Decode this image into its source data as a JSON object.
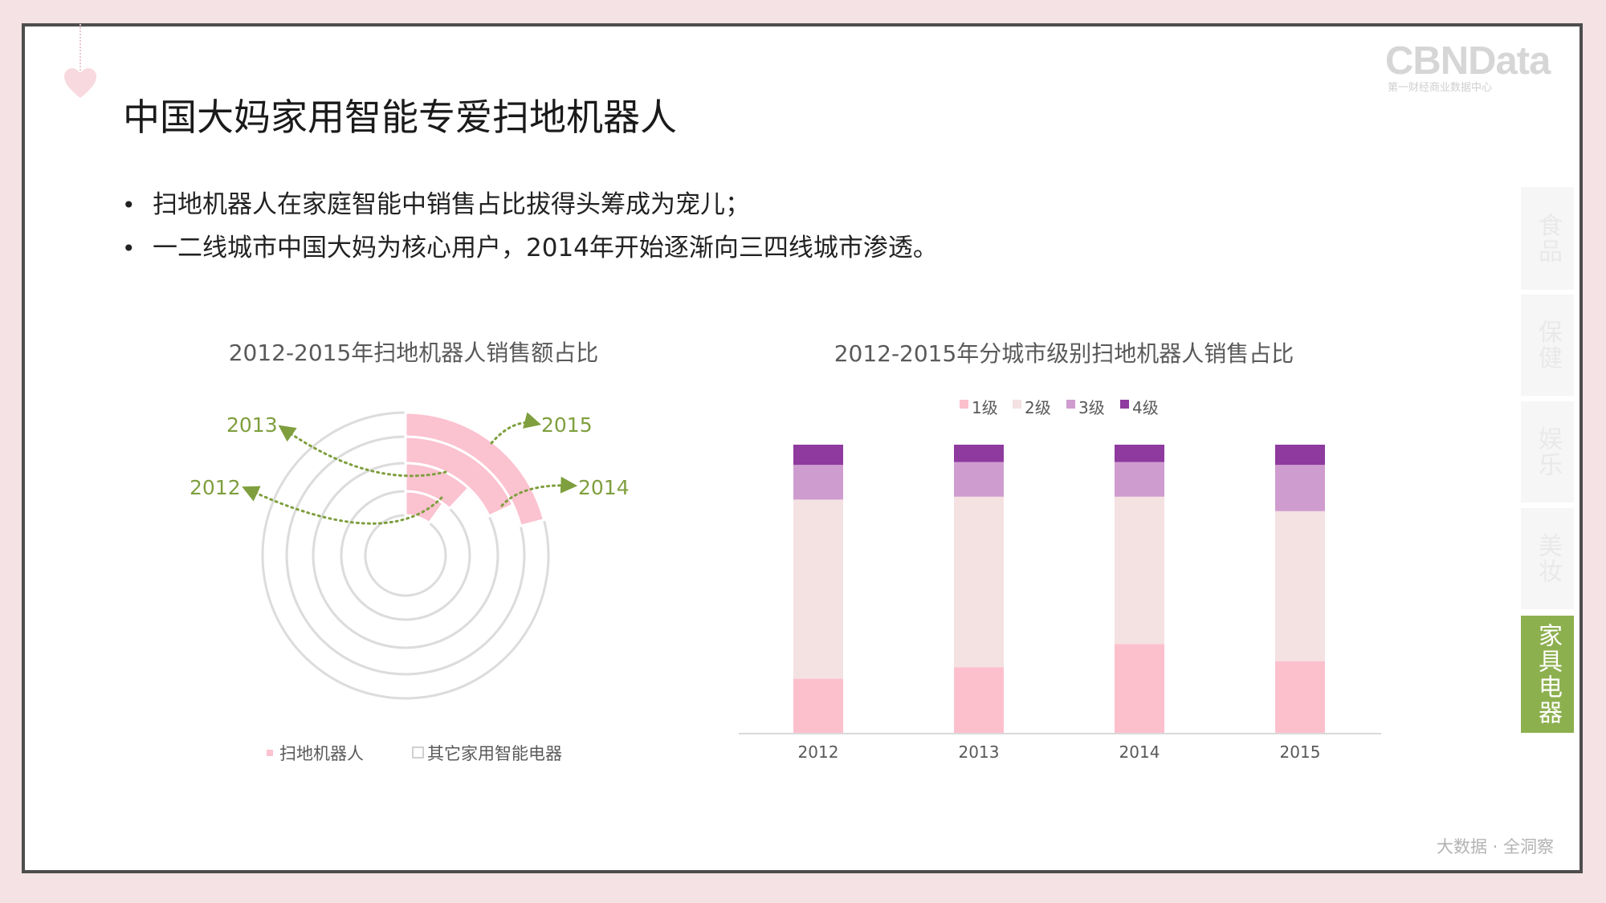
{
  "slide": {
    "title": "中国大妈家用智能专爱扫地机器人",
    "bullets": [
      "扫地机器人在家庭智能中销售占比拔得头筹成为宠儿；",
      "一二线城市中国大妈为核心用户，2014年开始逐渐向三四线城市渗透。"
    ],
    "logo": {
      "main": "CBNData",
      "sub": "第一财经商业数据中心"
    },
    "footer": "大数据 · 全洞察",
    "side_tabs": [
      {
        "label": "食品",
        "active": false
      },
      {
        "label": "保健",
        "active": false
      },
      {
        "label": "娱乐",
        "active": false
      },
      {
        "label": "美妆",
        "active": false
      },
      {
        "label": "家具电器",
        "active": true
      }
    ]
  },
  "colors": {
    "accent_green": "#8db04f",
    "annotation_green": "#7f9f3e",
    "robot_pink": "#fbc2d0",
    "other_ring": "#dcdcdc",
    "tier1": "#fcc0cd",
    "tier2": "#f4e1e1",
    "tier3": "#cf9ccf",
    "tier4": "#8e3a9e"
  },
  "chart_data": [
    {
      "type": "pie",
      "subtype": "radial-ring",
      "title": "2012-2015年扫地机器人销售额占比",
      "series": [
        {
          "name": "扫地机器人",
          "values": [
            10,
            12,
            18,
            21
          ]
        },
        {
          "name": "其它家用智能电器",
          "values": [
            90,
            88,
            82,
            79
          ]
        }
      ],
      "rings": [
        "2012",
        "2013",
        "2014",
        "2015"
      ],
      "annotations": [
        "2013",
        "2015",
        "2012",
        "2014"
      ],
      "legend": [
        "扫地机器人",
        "其它家用智能电器"
      ],
      "legend_position": "bottom"
    },
    {
      "type": "bar",
      "stacked": true,
      "title": "2012-2015年分城市级别扫地机器人销售占比",
      "categories": [
        "2012",
        "2013",
        "2014",
        "2015"
      ],
      "series": [
        {
          "name": "1级",
          "values": [
            19,
            23,
            31,
            25
          ]
        },
        {
          "name": "2级",
          "values": [
            62,
            59,
            51,
            52
          ]
        },
        {
          "name": "3级",
          "values": [
            12,
            12,
            12,
            16
          ]
        },
        {
          "name": "4级",
          "values": [
            7,
            6,
            6,
            7
          ]
        }
      ],
      "ylim": [
        0,
        100
      ],
      "legend_position": "top"
    }
  ]
}
